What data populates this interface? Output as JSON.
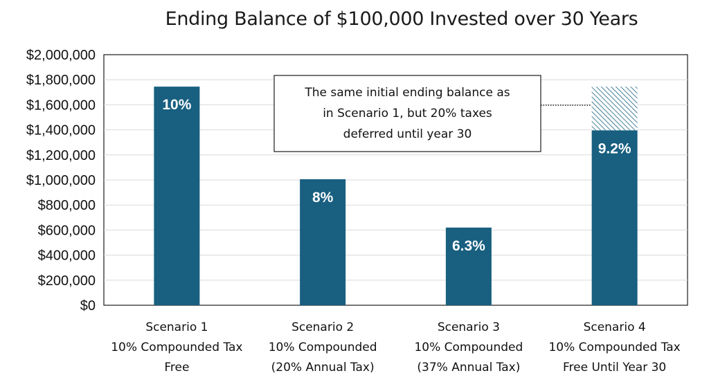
{
  "chart_data": {
    "type": "bar",
    "title": "Ending Balance of $100,000 Invested over 30 Years",
    "categories": [
      [
        "Scenario 1",
        "10% Compounded Tax",
        "Free"
      ],
      [
        "Scenario 2",
        "10% Compounded",
        "(20% Annual Tax)"
      ],
      [
        "Scenario 3",
        "10% Compounded",
        "(37% Annual Tax)"
      ],
      [
        "Scenario 4",
        "10% Compounded Tax",
        "Free Until Year 30"
      ]
    ],
    "values": [
      1745000,
      1006000,
      620000,
      1396000
    ],
    "deferred_tax_segment": {
      "category_index": 3,
      "top_value": 1745000
    },
    "data_labels": [
      "10%",
      "8%",
      "6.3%",
      "9.2%"
    ],
    "ylim": [
      0,
      2000000
    ],
    "y_ticks": [
      "$0",
      "$200,000",
      "$400,000",
      "$600,000",
      "$800,000",
      "$1,000,000",
      "$1,200,000",
      "$1,400,000",
      "$1,600,000",
      "$1,800,000",
      "$2,000,000"
    ],
    "y_tick_values": [
      0,
      200000,
      400000,
      600000,
      800000,
      1000000,
      1200000,
      1400000,
      1600000,
      1800000,
      2000000
    ],
    "annotation": {
      "lines": [
        "The same initial ending balance as",
        "in Scenario 1, but 20% taxes",
        "deferred until year 30"
      ]
    },
    "grid": true,
    "colors": {
      "bar": "#185f80",
      "hatch": "#185f80",
      "grid": "#d9d9d9",
      "axis": "#1a1a1a"
    }
  }
}
